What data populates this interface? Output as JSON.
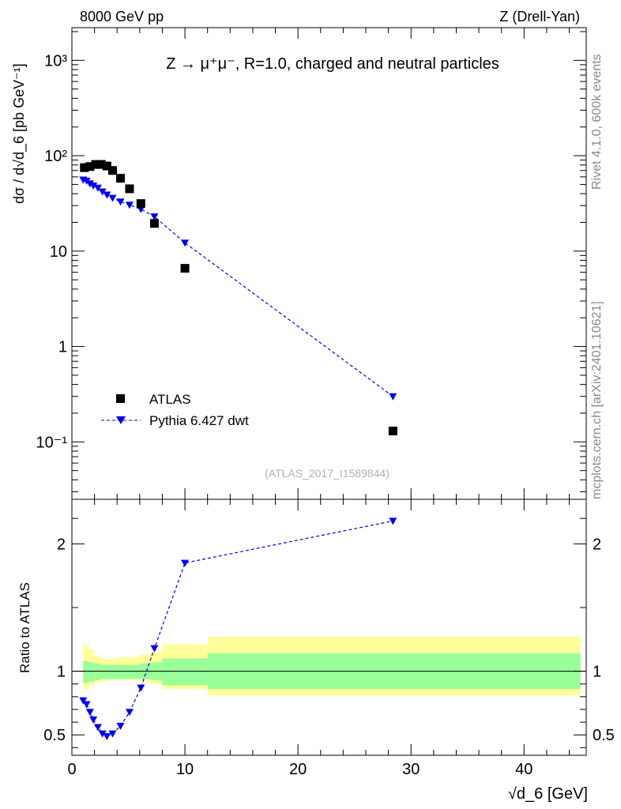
{
  "header": {
    "left": "8000 GeV pp",
    "right": "Z (Drell-Yan)"
  },
  "side_labels": {
    "rivet": "Rivet 4.1.0,  600k events",
    "mcplots": "mcplots.cern.ch [arXiv:2401.10621]"
  },
  "chart_data": {
    "type": "scatter",
    "title": "Z → μ⁺μ⁻, R=1.0, charged and neutral particles",
    "watermark": "(ATLAS_2017_I1589844)",
    "xlabel": "√d_6 [GeV]",
    "ylabel": "dσ / d√d_6 [pb GeV⁻¹]",
    "ratio_ylabel": "Ratio to ATLAS",
    "xlim": [
      0,
      45.5
    ],
    "ylim": [
      0.025,
      2200
    ],
    "ratio_ylim": [
      0.34,
      2.35
    ],
    "yscale": "log",
    "x_ticks": [
      "0",
      "10",
      "20",
      "30",
      "40"
    ],
    "y_ticks": [
      "10⁻¹",
      "1",
      "10",
      "10²",
      "10³"
    ],
    "ratio_ticks": [
      "0.5",
      "1",
      "2"
    ],
    "legend": [
      "ATLAS",
      "Pythia 6.427 dwt"
    ],
    "colors": {
      "data": "#000000",
      "mc": "#0000ee",
      "band_inner": "#99ff99",
      "band_outer": "#ffff99"
    },
    "series": [
      {
        "name": "ATLAS",
        "x": [
          1.1,
          1.6,
          2.1,
          2.6,
          3.1,
          3.6,
          4.3,
          5.1,
          6.1,
          7.3,
          10.0,
          28.4
        ],
        "values": [
          75,
          77,
          81,
          81,
          78,
          70,
          58,
          45,
          31.5,
          19.5,
          6.6,
          0.13
        ]
      },
      {
        "name": "Pythia 6.427 dwt",
        "x": [
          1.0,
          1.3,
          1.6,
          1.9,
          2.3,
          2.7,
          3.1,
          3.6,
          4.3,
          5.1,
          6.1,
          7.3,
          10.0,
          28.4
        ],
        "values": [
          56,
          54.5,
          51,
          48.5,
          46,
          42,
          39,
          36,
          33,
          30.5,
          27.5,
          23,
          12.2,
          0.3
        ]
      }
    ],
    "ratio": {
      "x": [
        1.0,
        1.3,
        1.6,
        1.9,
        2.3,
        2.7,
        3.1,
        3.6,
        4.3,
        5.1,
        6.1,
        7.3,
        10.0,
        28.4
      ],
      "values": [
        0.77,
        0.74,
        0.68,
        0.62,
        0.56,
        0.51,
        0.49,
        0.51,
        0.57,
        0.68,
        0.87,
        1.18,
        1.85,
        2.18
      ]
    },
    "band": {
      "edges": [
        1.0,
        1.5,
        2.0,
        2.5,
        3.0,
        3.5,
        4.0,
        5.0,
        6.0,
        7.0,
        8.0,
        12.0,
        45.0
      ],
      "inner_lo": [
        0.91,
        0.92,
        0.93,
        0.94,
        0.94,
        0.94,
        0.94,
        0.94,
        0.94,
        0.93,
        0.89,
        0.86
      ],
      "inner_hi": [
        1.08,
        1.07,
        1.06,
        1.05,
        1.05,
        1.05,
        1.05,
        1.05,
        1.06,
        1.07,
        1.1,
        1.14
      ],
      "outer_lo": [
        0.86,
        0.89,
        0.91,
        0.92,
        0.93,
        0.93,
        0.93,
        0.93,
        0.92,
        0.9,
        0.86,
        0.81
      ],
      "outer_hi": [
        1.21,
        1.17,
        1.12,
        1.1,
        1.1,
        1.1,
        1.11,
        1.11,
        1.13,
        1.15,
        1.21,
        1.27
      ]
    }
  }
}
